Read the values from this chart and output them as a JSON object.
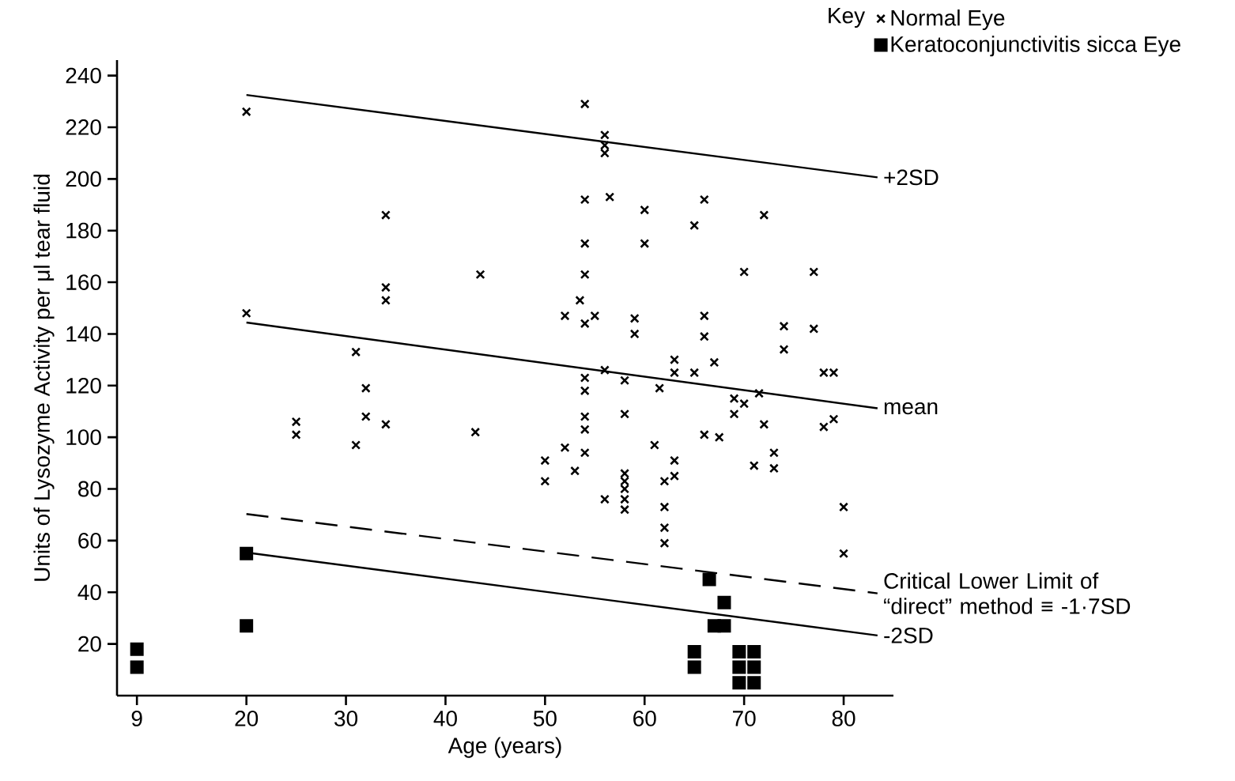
{
  "chart_data": {
    "type": "scatter",
    "xlabel": "Age (years)",
    "ylabel": "Units of Lysozyme Activity per μl tear fluid",
    "legend_title": "Key",
    "legend": "top right",
    "xlim": [
      7,
      85
    ],
    "ylim": [
      0,
      246
    ],
    "xticks": [
      9,
      20,
      30,
      40,
      50,
      60,
      70,
      80
    ],
    "yticks": [
      20,
      40,
      60,
      80,
      100,
      120,
      140,
      160,
      180,
      200,
      220,
      240
    ],
    "series": [
      {
        "name": "Normal Eye",
        "marker": "cross",
        "color": "#000000",
        "x": [
          20,
          20,
          34,
          34,
          34,
          43.5,
          31,
          32,
          32,
          25,
          25,
          34,
          43,
          31,
          54,
          56,
          56,
          56,
          54,
          56.5,
          60,
          66,
          65,
          72,
          54,
          60,
          54,
          70,
          77,
          53.5,
          52,
          54,
          55,
          59,
          59,
          66,
          66,
          74,
          77,
          74,
          54,
          54,
          56,
          58,
          61.5,
          63,
          63,
          65,
          67,
          69,
          69,
          70,
          71.5,
          78,
          79,
          54,
          54,
          58,
          72,
          78,
          79,
          66,
          67.5,
          54,
          50,
          50,
          52,
          53,
          56,
          58,
          58,
          58,
          58,
          58,
          61,
          63,
          63,
          62,
          62,
          62,
          62,
          71,
          73,
          73,
          80,
          80
        ],
        "values": [
          226,
          148,
          186,
          158,
          153,
          163,
          133,
          119,
          108,
          106,
          101,
          105,
          102,
          97,
          229,
          217,
          213,
          210,
          192,
          193,
          188,
          192,
          182,
          186,
          175,
          175,
          163,
          164,
          164,
          153,
          147,
          144,
          147,
          146,
          140,
          147,
          139,
          143,
          142,
          134,
          123,
          118,
          126,
          122,
          119,
          130,
          125,
          125,
          129,
          115,
          109,
          113,
          117,
          125,
          125,
          108,
          103,
          109,
          105,
          104,
          107,
          101,
          100,
          94,
          91,
          83,
          96,
          87,
          76,
          86,
          83,
          80,
          76,
          72,
          97,
          91,
          85,
          83,
          73,
          65,
          59,
          89,
          94,
          88,
          73,
          55
        ]
      },
      {
        "name": "Keratoconjunctivitis sicca Eye",
        "marker": "square",
        "color": "#000000",
        "x": [
          9,
          9,
          20,
          20,
          66.5,
          68,
          67,
          68,
          65,
          65,
          69.5,
          71,
          69.5,
          71,
          69.5,
          71
        ],
        "values": [
          18,
          11,
          55,
          27,
          45,
          36,
          27,
          27,
          17,
          11,
          17,
          17,
          11,
          11,
          5,
          5
        ]
      },
      {
        "name": "+2SD",
        "type": "line",
        "color": "#000000",
        "x": [
          20,
          83.4
        ],
        "values": [
          232.5,
          200.6
        ]
      },
      {
        "name": "mean",
        "type": "line",
        "color": "#000000",
        "x": [
          20,
          83.4
        ],
        "values": [
          144.4,
          111.2
        ]
      },
      {
        "name": "Critical Lower Limit of “direct” method ≡ -1·7SD",
        "type": "line",
        "line_style": "dashed",
        "color": "#000000",
        "x": [
          20,
          83.4
        ],
        "values": [
          70.3,
          39.6
        ]
      },
      {
        "name": "-2SD",
        "type": "line",
        "color": "#000000",
        "x": [
          20,
          83.4
        ],
        "values": [
          55.4,
          23.3
        ]
      }
    ]
  }
}
